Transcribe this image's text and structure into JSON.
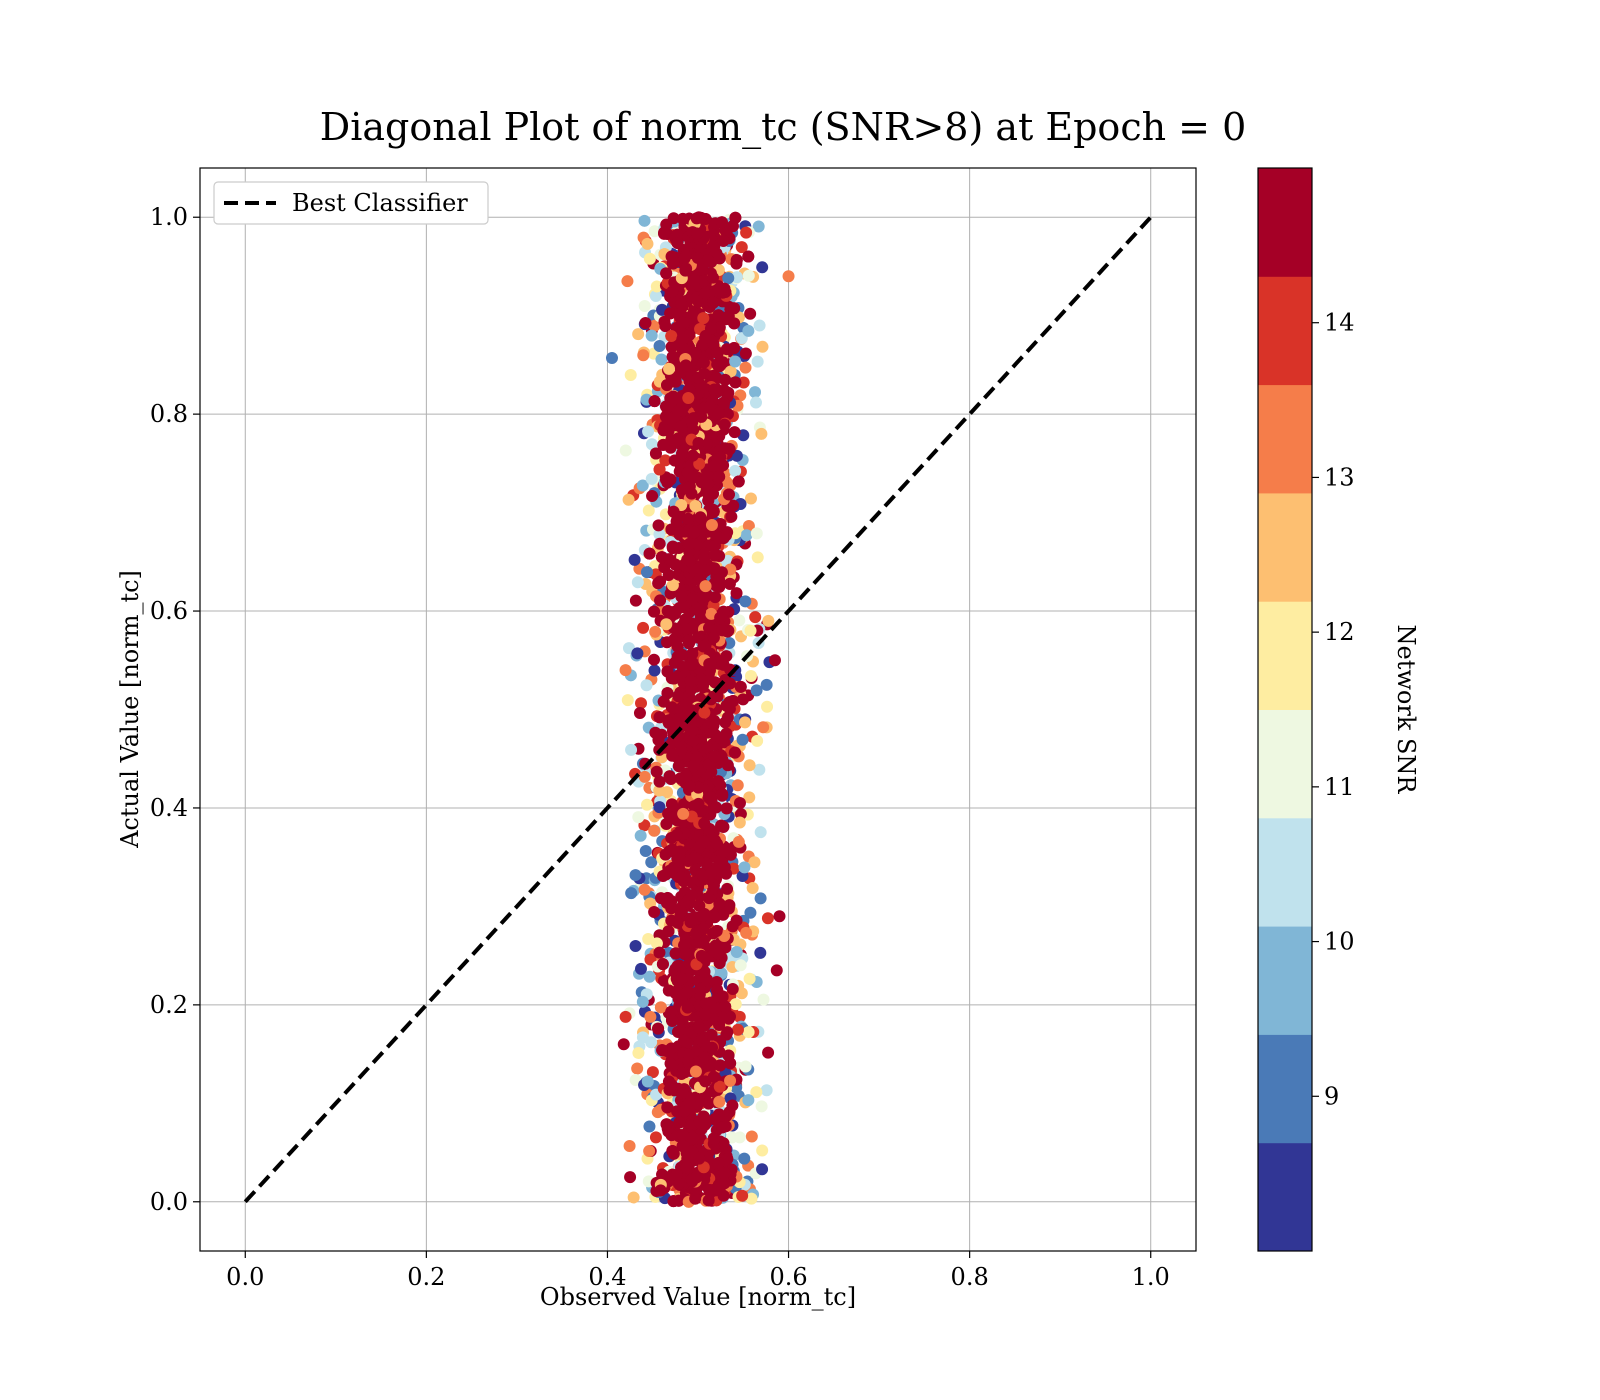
{
  "chart_data": {
    "type": "scatter",
    "title": "Diagonal Plot of norm_tc (SNR>8) at Epoch = 0",
    "xlabel": "Observed Value [norm_tc]",
    "ylabel": "Actual Value [norm_tc]",
    "xlim": [
      -0.05,
      1.05
    ],
    "ylim": [
      -0.05,
      1.05
    ],
    "xticks": [
      0.0,
      0.2,
      0.4,
      0.6,
      0.8,
      1.0
    ],
    "yticks": [
      0.0,
      0.2,
      0.4,
      0.6,
      0.8,
      1.0
    ],
    "xtick_labels": [
      "0.0",
      "0.2",
      "0.4",
      "0.6",
      "0.8",
      "1.0"
    ],
    "ytick_labels": [
      "0.0",
      "0.2",
      "0.4",
      "0.6",
      "0.8",
      "1.0"
    ],
    "grid": true,
    "legend": {
      "placement": "upper-left",
      "entries": [
        {
          "label": "Best Classifier",
          "style": "dashed",
          "color": "#000000"
        }
      ]
    },
    "reference_line": {
      "label": "Best Classifier",
      "x": [
        0.0,
        1.0
      ],
      "y": [
        0.0,
        1.0
      ],
      "style": "dashed",
      "color": "#000000"
    },
    "scatter_summary": {
      "x_center": 0.5,
      "x_spread_core": 0.035,
      "x_extent": [
        0.4,
        0.6
      ],
      "y_extent": [
        0.0,
        1.0
      ],
      "dominant_color": "#a50026",
      "notable_points": [
        {
          "x": 0.405,
          "y": 0.857,
          "snr": 9.0
        },
        {
          "x": 0.6,
          "y": 0.94,
          "snr": 13.2
        },
        {
          "x": 0.585,
          "y": 0.55,
          "snr": 14.8
        },
        {
          "x": 0.59,
          "y": 0.29,
          "snr": 14.8
        },
        {
          "x": 0.587,
          "y": 0.235,
          "snr": 14.8
        },
        {
          "x": 0.43,
          "y": 0.652,
          "snr": 8.2
        },
        {
          "x": 0.42,
          "y": 0.54,
          "snr": 13.3
        },
        {
          "x": 0.418,
          "y": 0.16,
          "snr": 14.5
        },
        {
          "x": 0.425,
          "y": 0.025,
          "snr": 14.5
        },
        {
          "x": 0.572,
          "y": 0.482,
          "snr": 13.3
        },
        {
          "x": 0.57,
          "y": 0.78,
          "snr": 12.5
        },
        {
          "x": 0.568,
          "y": 0.89,
          "snr": 10.2
        }
      ]
    },
    "colorbar": {
      "label": "Network SNR",
      "range": [
        8.0,
        15.0
      ],
      "ticks": [
        9,
        10,
        11,
        12,
        13,
        14
      ],
      "tick_labels": [
        "9",
        "10",
        "11",
        "12",
        "13",
        "14"
      ],
      "bins": [
        {
          "from": 8.0,
          "to": 8.7,
          "color": "#313695"
        },
        {
          "from": 8.7,
          "to": 9.4,
          "color": "#4a7ab7"
        },
        {
          "from": 9.4,
          "to": 10.1,
          "color": "#80b6d6"
        },
        {
          "from": 10.1,
          "to": 10.8,
          "color": "#c0e2ed"
        },
        {
          "from": 10.8,
          "to": 11.5,
          "color": "#eef8e1"
        },
        {
          "from": 11.5,
          "to": 12.2,
          "color": "#feeda1"
        },
        {
          "from": 12.2,
          "to": 12.9,
          "color": "#fdbf71"
        },
        {
          "from": 12.9,
          "to": 13.6,
          "color": "#f57d4a"
        },
        {
          "from": 13.6,
          "to": 14.3,
          "color": "#d93328"
        },
        {
          "from": 14.3,
          "to": 15.0,
          "color": "#a50026"
        }
      ]
    }
  }
}
